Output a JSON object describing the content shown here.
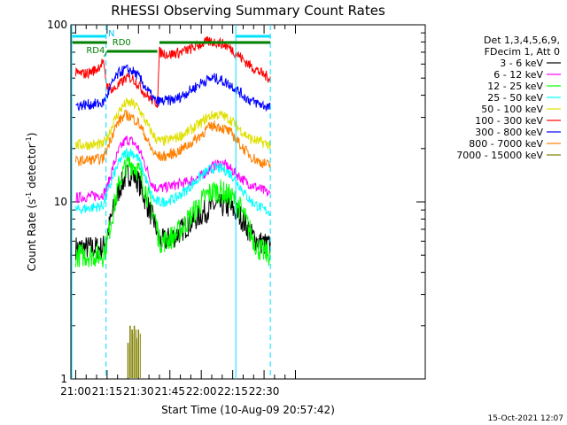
{
  "chart_data": {
    "type": "line",
    "title": "RHESSI Observing Summary Count Rates",
    "xlabel": "Start Time (10-Aug-09 20:57:42)",
    "ylabel_main": "Count Rate (s",
    "ylabel_sup": "-1",
    "ylabel_rest": " detector",
    "ylabel_sup2": "-1",
    "ylabel_end": ")",
    "y_scale": "log",
    "ylim": [
      1,
      100
    ],
    "y_ticks": [
      {
        "value": 1,
        "label": "1"
      },
      {
        "value": 10,
        "label": "10"
      },
      {
        "value": 100,
        "label": "100"
      }
    ],
    "xlim": [
      "20:57:42",
      "23:47:00"
    ],
    "x_ticks": [
      {
        "value": "21:00",
        "label": "21:00"
      },
      {
        "value": "21:15",
        "label": "21:15"
      },
      {
        "value": "21:30",
        "label": "21:30"
      },
      {
        "value": "21:45",
        "label": "21:45"
      },
      {
        "value": "22:00",
        "label": "22:00"
      },
      {
        "value": "22:15",
        "label": "22:15"
      },
      {
        "value": "22:30",
        "label": "22:30"
      }
    ],
    "legend_header": [
      "Det 1,3,4,5,6,9,",
      "FDecim 1, Att 0"
    ],
    "legend_position": "top-right",
    "series": [
      {
        "name": "3 - 6 keV",
        "color": "#000000",
        "x": [
          "21:00",
          "21:13",
          "21:15",
          "21:18",
          "21:21",
          "21:24",
          "21:27",
          "21:30",
          "21:33",
          "21:36",
          "21:38",
          "21:40",
          "21:42",
          "21:48",
          "21:54",
          "22:00",
          "22:03",
          "22:06",
          "22:09",
          "22:12",
          "22:15",
          "22:18",
          "22:21",
          "22:24",
          "22:27",
          "22:30",
          "22:33"
        ],
        "y": [
          5.5,
          5.5,
          6.5,
          9,
          12,
          14,
          14.5,
          13,
          10.5,
          8.5,
          7.5,
          6,
          6,
          6.5,
          7.5,
          8.5,
          9,
          9.5,
          9.5,
          9.5,
          9,
          8.5,
          7.5,
          6.5,
          6,
          5.8,
          5.6
        ]
      },
      {
        "name": "6 - 12 keV",
        "color": "#ff00ff",
        "x": [
          "21:00",
          "21:13",
          "21:15",
          "21:18",
          "21:21",
          "21:24",
          "21:27",
          "21:30",
          "21:33",
          "21:36",
          "21:38",
          "21:40",
          "21:42",
          "21:48",
          "21:54",
          "22:00",
          "22:03",
          "22:06",
          "22:09",
          "22:12",
          "22:15",
          "22:18",
          "22:21",
          "22:24",
          "22:27",
          "22:30",
          "22:33"
        ],
        "y": [
          10.5,
          11,
          12,
          16,
          20,
          22.5,
          22,
          20,
          16.5,
          13,
          12,
          12,
          12,
          12.5,
          13,
          14,
          15,
          16,
          16.5,
          16,
          15,
          14,
          13,
          12.5,
          12,
          11.5,
          11
        ]
      },
      {
        "name": "12 - 25 keV",
        "color": "#00ff00",
        "x": [
          "21:00",
          "21:13",
          "21:15",
          "21:18",
          "21:21",
          "21:24",
          "21:27",
          "21:30",
          "21:33",
          "21:36",
          "21:38",
          "21:40",
          "21:42",
          "21:48",
          "21:54",
          "22:00",
          "22:03",
          "22:06",
          "22:09",
          "22:12",
          "22:15",
          "22:18",
          "22:21",
          "22:24",
          "22:27",
          "22:30",
          "22:33"
        ],
        "y": [
          5,
          5,
          6,
          9,
          13,
          16,
          16.5,
          15,
          12,
          9.5,
          8,
          6,
          6,
          6.5,
          8,
          10,
          11,
          11.5,
          11.5,
          11,
          10.5,
          9.5,
          8,
          6.5,
          5.5,
          5.2,
          5
        ]
      },
      {
        "name": "25 - 50 keV",
        "color": "#00ffff",
        "x": [
          "21:00",
          "21:13",
          "21:15",
          "21:18",
          "21:21",
          "21:24",
          "21:27",
          "21:30",
          "21:33",
          "21:36",
          "21:38",
          "21:40",
          "21:42",
          "21:48",
          "21:54",
          "22:00",
          "22:03",
          "22:06",
          "22:09",
          "22:12",
          "22:15",
          "22:18",
          "22:21",
          "22:24",
          "22:27",
          "22:30",
          "22:33"
        ],
        "y": [
          9,
          9.5,
          11,
          14,
          17,
          19,
          19,
          17.5,
          14,
          11,
          10,
          10,
          10,
          10.5,
          12,
          14,
          15,
          15.5,
          15.5,
          15,
          14,
          12.5,
          11,
          10,
          9.5,
          9,
          8.8
        ]
      },
      {
        "name": "50 - 100 keV",
        "color": "#e0e000",
        "x": [
          "21:00",
          "21:13",
          "21:15",
          "21:18",
          "21:21",
          "21:24",
          "21:27",
          "21:30",
          "21:33",
          "21:36",
          "21:38",
          "21:40",
          "21:42",
          "21:48",
          "21:54",
          "22:00",
          "22:03",
          "22:06",
          "22:09",
          "22:12",
          "22:15",
          "22:18",
          "22:21",
          "22:24",
          "22:27",
          "22:30",
          "22:33"
        ],
        "y": [
          21,
          21,
          23,
          28,
          33,
          36,
          36,
          34,
          29,
          25,
          23,
          22,
          22,
          23,
          25,
          28,
          30,
          31,
          31,
          30,
          28.5,
          26,
          24,
          22.5,
          22,
          21.5,
          21
        ]
      },
      {
        "name": "100 - 300 keV",
        "color": "#ff0000",
        "x": [
          "21:00",
          "21:05",
          "21:10",
          "21:13",
          "21:15",
          "21:18",
          "21:21",
          "21:24",
          "21:27",
          "21:30",
          "21:33",
          "21:36",
          "21:39",
          "21:40",
          "21:45",
          "21:50",
          "21:55",
          "22:00",
          "22:03",
          "22:06",
          "22:09",
          "22:12",
          "22:15",
          "22:18",
          "22:21",
          "22:24",
          "22:27",
          "22:30",
          "22:33"
        ],
        "y": [
          53,
          53,
          56,
          62,
          45,
          43,
          46,
          50,
          50,
          46,
          41,
          38,
          36,
          70,
          68,
          70,
          73,
          78,
          80,
          80,
          79,
          76,
          72,
          67,
          62,
          58,
          55,
          52,
          50
        ]
      },
      {
        "name": "300 - 800 keV",
        "color": "#0000ff",
        "x": [
          "21:00",
          "21:13",
          "21:15",
          "21:18",
          "21:21",
          "21:24",
          "21:27",
          "21:30",
          "21:33",
          "21:36",
          "21:38",
          "21:40",
          "21:42",
          "21:48",
          "21:54",
          "22:00",
          "22:03",
          "22:06",
          "22:09",
          "22:12",
          "22:15",
          "22:18",
          "22:21",
          "22:24",
          "22:27",
          "22:30",
          "22:33"
        ],
        "y": [
          35,
          36,
          40,
          48,
          54,
          56,
          55,
          51,
          45,
          40,
          37,
          37,
          37,
          38,
          42,
          47,
          49,
          50,
          49,
          47,
          45,
          42,
          39,
          37,
          36,
          35,
          34
        ]
      },
      {
        "name": "800 - 7000 keV",
        "color": "#ff8000",
        "x": [
          "21:00",
          "21:13",
          "21:15",
          "21:18",
          "21:21",
          "21:24",
          "21:27",
          "21:30",
          "21:33",
          "21:36",
          "21:38",
          "21:40",
          "21:42",
          "21:48",
          "21:54",
          "22:00",
          "22:03",
          "22:06",
          "22:09",
          "22:12",
          "22:15",
          "22:18",
          "22:21",
          "22:24",
          "22:27",
          "22:30",
          "22:33"
        ],
        "y": [
          17,
          17.5,
          20,
          25,
          29,
          31,
          30,
          28,
          24,
          20,
          18.5,
          18,
          18,
          19,
          21,
          24,
          26,
          27,
          26.5,
          25.5,
          24,
          21.5,
          19.5,
          18,
          17,
          16.5,
          16
        ]
      },
      {
        "name": "7000 - 15000 keV",
        "color": "#808000",
        "x": [
          "21:25",
          "21:26",
          "21:27",
          "21:28",
          "21:29",
          "21:30"
        ],
        "y": [
          1.6,
          2,
          1.9,
          2,
          1.7,
          1.9
        ]
      }
    ],
    "intervals": [
      {
        "label": "",
        "color": "#00e0ff",
        "x0": "20:58:30",
        "x1": "21:14:30"
      },
      {
        "label": "",
        "color": "#00e0ff",
        "x0": "22:16:30",
        "x1": "22:33:00"
      },
      {
        "label": "",
        "color": "#008000",
        "x0": "20:58:30",
        "x1": "21:15:00"
      },
      {
        "label": "",
        "color": "#008000",
        "x0": "21:40:00",
        "x1": "22:33:00"
      }
    ],
    "annotations": [
      {
        "text": "N",
        "color": "#00c0ff",
        "x": "21:15:30"
      },
      {
        "text": "RD0",
        "color": "#008000",
        "x": "21:17:30"
      },
      {
        "text": "RD4",
        "color": "#008000",
        "x": "21:09:30"
      }
    ],
    "timestamp": "15-Oct-2021 12:07"
  }
}
